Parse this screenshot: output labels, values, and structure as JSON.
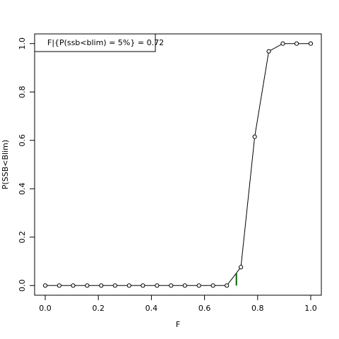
{
  "chart_data": {
    "type": "line",
    "x_label": "F",
    "y_label": "P(SSB<Blim)",
    "annotation": "F|{P(ssb<blim) = 5%} =  0.72",
    "x": [
      0,
      0.053,
      0.105,
      0.158,
      0.211,
      0.263,
      0.316,
      0.368,
      0.421,
      0.474,
      0.526,
      0.579,
      0.632,
      0.684,
      0.737,
      0.789,
      0.842,
      0.895,
      0.947,
      1
    ],
    "series": [
      {
        "color": "#000000",
        "values": [
          0,
          0,
          0,
          0,
          0,
          0,
          0,
          0,
          0,
          0,
          0,
          0,
          0,
          0,
          0.076,
          0.615,
          0.968,
          1,
          1,
          1
        ]
      }
    ],
    "marker": {
      "x": 0.72,
      "y": 0.05,
      "color": "#006400"
    },
    "xlim": [
      -0.04,
      1.04
    ],
    "ylim": [
      -0.04,
      1.04
    ],
    "xticks": [
      {
        "value": 0,
        "label": "0.0"
      },
      0.2,
      0.4,
      0.6,
      0.8,
      {
        "value": 1,
        "label": "1.0"
      }
    ],
    "yticks": [
      {
        "value": 0,
        "label": "0.0"
      },
      0.2,
      0.4,
      0.6,
      0.8,
      {
        "value": 1,
        "label": "1.0"
      }
    ]
  }
}
